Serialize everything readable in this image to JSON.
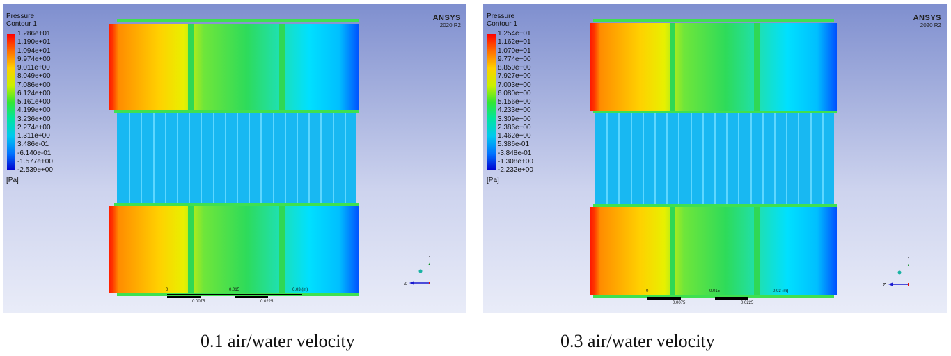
{
  "panels": [
    {
      "legend_title_1": "Pressure",
      "legend_title_2": "Contour 1",
      "brand": "ANSYS",
      "version": "2020 R2",
      "unit": "[Pa]",
      "ticks": [
        "1.286e+01",
        "1.190e+01",
        "1.094e+01",
        "9.974e+00",
        "9.011e+00",
        "8.049e+00",
        "7.086e+00",
        "6.124e+00",
        "5.161e+00",
        "4.199e+00",
        "3.236e+00",
        "2.274e+00",
        "1.311e+00",
        "3.486e-01",
        "-6.140e-01",
        "-1.577e+00",
        "-2.539e+00"
      ],
      "scale_top": [
        "0",
        "0.015",
        "0.03  (m)"
      ],
      "scale_bottom": [
        "0.0075",
        "0.0225"
      ],
      "axis_y": "Y",
      "axis_z": "Z",
      "caption": "0.1 air/water velocity"
    },
    {
      "legend_title_1": "Pressure",
      "legend_title_2": "Contour 1",
      "brand": "ANSYS",
      "version": "2020 R2",
      "unit": "[Pa]",
      "ticks": [
        "1.254e+01",
        "1.162e+01",
        "1.070e+01",
        "9.774e+00",
        "8.850e+00",
        "7.927e+00",
        "7.003e+00",
        "6.080e+00",
        "5.156e+00",
        "4.233e+00",
        "3.309e+00",
        "2.386e+00",
        "1.462e+00",
        "5.386e-01",
        "-3.848e-01",
        "-1.308e+00",
        "-2.232e+00"
      ],
      "scale_top": [
        "0",
        "0.015",
        "0.03  (m)"
      ],
      "scale_bottom": [
        "0.0075",
        "0.0225"
      ],
      "axis_y": "Y",
      "axis_z": "Z",
      "caption": "0.3 air/water velocity"
    }
  ]
}
